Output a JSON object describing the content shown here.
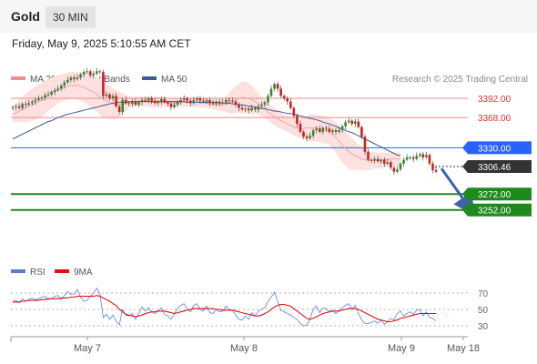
{
  "header": {
    "title": "Gold",
    "timeframe": "30 MIN"
  },
  "datetime": "Friday, May 9, 2025 5:10:55 AM CET",
  "legend": {
    "items": [
      {
        "label": "MA 20 + Bollinger Bands",
        "color": "#f28b8b"
      },
      {
        "label": "MA 50",
        "color": "#3d5a99"
      }
    ],
    "attribution": "Research © 2025 Trading Central"
  },
  "rsi_legend": {
    "items": [
      {
        "label": "RSI",
        "color": "#5b7bd5"
      },
      {
        "label": "9MA",
        "color": "#dd1111"
      }
    ]
  },
  "colors": {
    "resistance": "#f28b8b",
    "pivot": "#2962ff",
    "support": "#1e8a1e",
    "last_price": "#333333",
    "arrow": "#3d64a8",
    "candle_up": "#2e8b2e",
    "candle_down": "#cc1f1f",
    "bollinger_fill": "#fde0e0"
  },
  "chart_data": [
    {
      "type": "candlestick",
      "x_tick_labels": [
        "May 7",
        "May 8",
        "May 9",
        "May 18"
      ],
      "ylim": [
        3230,
        3440
      ],
      "levels": [
        {
          "value": 3392.0,
          "label": "3392.00",
          "kind": "resistance"
        },
        {
          "value": 3368.0,
          "label": "3368.00",
          "kind": "resistance"
        },
        {
          "value": 3330.0,
          "label": "3330.00",
          "kind": "pivot"
        },
        {
          "value": 3306.46,
          "label": "3306.46",
          "kind": "last"
        },
        {
          "value": 3272.0,
          "label": "3272.00",
          "kind": "support"
        },
        {
          "value": 3252.0,
          "label": "3252.00",
          "kind": "support"
        }
      ],
      "forecast_arrow": {
        "from": [
          0,
          3304
        ],
        "to": [
          3,
          3256
        ],
        "x_unit": "bars after last"
      },
      "close": [
        3381,
        3382,
        3380,
        3385,
        3384,
        3386,
        3388,
        3390,
        3392,
        3393,
        3396,
        3397,
        3400,
        3402,
        3404,
        3408,
        3412,
        3415,
        3418,
        3416,
        3418,
        3422,
        3425,
        3426,
        3421,
        3423,
        3426,
        3425,
        3395,
        3397,
        3392,
        3395,
        3382,
        3375,
        3390,
        3386,
        3385,
        3388,
        3384,
        3387,
        3390,
        3389,
        3392,
        3389,
        3386,
        3388,
        3391,
        3387,
        3385,
        3381,
        3384,
        3388,
        3390,
        3392,
        3389,
        3386,
        3390,
        3392,
        3389,
        3388,
        3390,
        3386,
        3385,
        3388,
        3386,
        3387,
        3390,
        3389,
        3388,
        3384,
        3380,
        3378,
        3379,
        3377,
        3380,
        3378,
        3382,
        3384,
        3387,
        3395,
        3404,
        3410,
        3404,
        3395,
        3392,
        3388,
        3380,
        3370,
        3360,
        3350,
        3344,
        3342,
        3345,
        3352,
        3354,
        3350,
        3355,
        3354,
        3350,
        3352,
        3350,
        3352,
        3357,
        3362,
        3364,
        3360,
        3363,
        3356,
        3344,
        3325,
        3315,
        3314,
        3316,
        3313,
        3315,
        3310,
        3312,
        3305,
        3300,
        3303,
        3310,
        3315,
        3318,
        3318,
        3316,
        3320,
        3322,
        3318,
        3321,
        3310,
        3302,
        3300
      ],
      "ma20": [
        3371,
        3374,
        3376,
        3378,
        3380,
        3382,
        3384,
        3386,
        3388,
        3390,
        3393,
        3396,
        3399,
        3401,
        3403,
        3405,
        3406,
        3407,
        3408,
        3408,
        3408,
        3407,
        3406,
        3404,
        3402,
        3400,
        3397,
        3394,
        3391,
        3389,
        3387,
        3385,
        3384,
        3384,
        3385,
        3386,
        3387,
        3388,
        3388,
        3388,
        3388,
        3388,
        3388,
        3387,
        3387,
        3387,
        3387,
        3387,
        3387,
        3386,
        3386,
        3387,
        3387,
        3387,
        3387,
        3387,
        3387,
        3387,
        3387,
        3386,
        3386,
        3385,
        3385,
        3384,
        3384,
        3384,
        3385,
        3386,
        3388,
        3390,
        3392,
        3393,
        3393,
        3392,
        3390,
        3388,
        3385,
        3382,
        3379,
        3375,
        3372,
        3369,
        3366,
        3364,
        3362,
        3360,
        3358,
        3356,
        3355,
        3354,
        3354,
        3355,
        3355,
        3355,
        3355,
        3354,
        3353,
        3352,
        3350,
        3347,
        3343,
        3338,
        3333,
        3329,
        3325,
        3322,
        3320,
        3318,
        3316,
        3315,
        3314,
        3314,
        3314,
        3314,
        3314,
        3315,
        3315,
        3316,
        3316,
        3316,
        3316
      ],
      "bb_upper": [
        3381,
        3385,
        3390,
        3394,
        3398,
        3401,
        3404,
        3407,
        3409,
        3411,
        3414,
        3416,
        3418,
        3420,
        3421,
        3422,
        3423,
        3424,
        3425,
        3425,
        3425,
        3425,
        3425,
        3424,
        3423,
        3421,
        3419,
        3417,
        3414,
        3411,
        3408,
        3405,
        3402,
        3400,
        3398,
        3396,
        3395,
        3394,
        3394,
        3394,
        3394,
        3394,
        3394,
        3394,
        3394,
        3394,
        3394,
        3393,
        3393,
        3392,
        3392,
        3392,
        3392,
        3393,
        3393,
        3393,
        3393,
        3393,
        3393,
        3392,
        3392,
        3391,
        3391,
        3391,
        3391,
        3392,
        3395,
        3399,
        3403,
        3407,
        3410,
        3413,
        3413,
        3411,
        3408,
        3403,
        3398,
        3394,
        3390,
        3386,
        3383,
        3380,
        3377,
        3374,
        3372,
        3370,
        3368,
        3367,
        3366,
        3366,
        3368,
        3370,
        3372,
        3372,
        3372,
        3371,
        3370,
        3369,
        3367,
        3365,
        3362,
        3358,
        3354,
        3350,
        3346,
        3342,
        3338,
        3334,
        3331,
        3328,
        3326,
        3325,
        3324,
        3324,
        3324,
        3324,
        3324,
        3324,
        3324,
        3324,
        3324
      ],
      "bb_lower": [
        3361,
        3363,
        3362,
        3362,
        3362,
        3363,
        3364,
        3365,
        3367,
        3369,
        3372,
        3376,
        3380,
        3382,
        3385,
        3388,
        3389,
        3390,
        3391,
        3391,
        3391,
        3389,
        3387,
        3384,
        3381,
        3379,
        3375,
        3371,
        3368,
        3367,
        3366,
        3365,
        3366,
        3368,
        3372,
        3376,
        3379,
        3382,
        3382,
        3382,
        3382,
        3382,
        3382,
        3380,
        3380,
        3380,
        3380,
        3381,
        3381,
        3380,
        3380,
        3382,
        3382,
        3381,
        3381,
        3381,
        3381,
        3381,
        3381,
        3380,
        3380,
        3379,
        3379,
        3377,
        3377,
        3376,
        3375,
        3373,
        3373,
        3373,
        3374,
        3373,
        3373,
        3373,
        3372,
        3373,
        3372,
        3370,
        3368,
        3364,
        3361,
        3358,
        3355,
        3354,
        3352,
        3350,
        3348,
        3345,
        3344,
        3342,
        3340,
        3340,
        3338,
        3338,
        3338,
        3337,
        3336,
        3335,
        3333,
        3329,
        3324,
        3318,
        3312,
        3308,
        3304,
        3302,
        3302,
        3302,
        3301,
        3302,
        3302,
        3303,
        3304,
        3304,
        3304,
        3306,
        3306,
        3308,
        3308,
        3308,
        3308
      ],
      "ma50": [
        3341,
        3343,
        3345,
        3347,
        3349,
        3351,
        3353,
        3355,
        3357,
        3359,
        3361,
        3363,
        3364,
        3366,
        3368,
        3369,
        3371,
        3372,
        3373,
        3374,
        3375,
        3376,
        3377,
        3378,
        3379,
        3380,
        3381,
        3382,
        3383,
        3384,
        3385,
        3386,
        3386,
        3387,
        3387,
        3387,
        3388,
        3388,
        3388,
        3388,
        3388,
        3388,
        3388,
        3388,
        3388,
        3388,
        3388,
        3388,
        3388,
        3388,
        3388,
        3388,
        3388,
        3388,
        3387,
        3387,
        3387,
        3387,
        3387,
        3387,
        3387,
        3387,
        3387,
        3387,
        3386,
        3386,
        3386,
        3386,
        3385,
        3385,
        3384,
        3384,
        3383,
        3382,
        3382,
        3381,
        3380,
        3379,
        3379,
        3378,
        3377,
        3376,
        3376,
        3375,
        3374,
        3373,
        3373,
        3372,
        3371,
        3370,
        3369,
        3368,
        3367,
        3366,
        3365,
        3364,
        3362,
        3361,
        3360,
        3358,
        3357,
        3355,
        3353,
        3352,
        3350,
        3349,
        3347,
        3345,
        3343,
        3341,
        3339,
        3337,
        3335,
        3333,
        3331,
        3329,
        3327,
        3325,
        3323,
        3321,
        3320
      ]
    },
    {
      "type": "line",
      "name": "RSI",
      "ylim": [
        20,
        80
      ],
      "y_tick_labels": [
        "70",
        "50",
        "30"
      ],
      "rsi": [
        60,
        61,
        58,
        63,
        60,
        62,
        64,
        62,
        63,
        65,
        66,
        62,
        63,
        66,
        67,
        62,
        67,
        72,
        68,
        69,
        74,
        65,
        60,
        61,
        66,
        70,
        76,
        69,
        40,
        44,
        38,
        43,
        36,
        31,
        50,
        43,
        42,
        45,
        38,
        45,
        53,
        48,
        52,
        47,
        45,
        48,
        52,
        44,
        42,
        38,
        44,
        51,
        55,
        57,
        51,
        47,
        55,
        57,
        50,
        48,
        54,
        46,
        45,
        50,
        47,
        48,
        54,
        50,
        49,
        43,
        38,
        37,
        42,
        38,
        46,
        42,
        48,
        50,
        52,
        60,
        65,
        71,
        60,
        49,
        47,
        45,
        43,
        40,
        38,
        33,
        30,
        31,
        38,
        50,
        54,
        46,
        52,
        51,
        47,
        49,
        45,
        48,
        52,
        55,
        57,
        50,
        55,
        45,
        37,
        33,
        33,
        34,
        36,
        33,
        37,
        32,
        35,
        39,
        37,
        45,
        48,
        42,
        45,
        47,
        44,
        49,
        50,
        42,
        47,
        40,
        39,
        36
      ],
      "ma9": [
        59,
        59,
        59,
        60,
        60,
        61,
        61,
        61,
        61,
        62,
        62,
        63,
        63,
        63,
        63,
        64,
        64,
        64,
        65,
        65,
        66,
        66,
        66,
        66,
        66,
        66,
        67,
        66,
        64,
        62,
        60,
        57,
        55,
        50,
        47,
        44,
        43,
        42,
        41,
        42,
        43,
        45,
        46,
        47,
        47,
        48,
        48,
        48,
        47,
        46,
        45,
        46,
        47,
        48,
        49,
        50,
        51,
        51,
        51,
        51,
        51,
        51,
        51,
        50,
        50,
        49,
        49,
        49,
        49,
        48,
        47,
        46,
        45,
        44,
        43,
        42,
        42,
        43,
        45,
        47,
        50,
        53,
        55,
        56,
        56,
        55,
        54,
        51,
        48,
        45,
        42,
        39,
        38,
        39,
        41,
        43,
        45,
        46,
        47,
        48,
        48,
        48,
        49,
        50,
        51,
        51,
        51,
        50,
        48,
        46,
        44,
        42,
        40,
        38,
        37,
        36,
        35,
        35,
        36,
        37,
        39,
        40,
        41,
        42,
        43,
        44,
        45,
        45,
        45,
        45,
        45,
        45
      ]
    }
  ]
}
